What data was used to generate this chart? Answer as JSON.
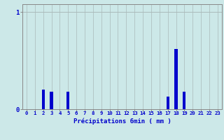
{
  "values": [
    0,
    0,
    0.2,
    0.18,
    0,
    0.18,
    0,
    0,
    0,
    0,
    0,
    0,
    0,
    0,
    0,
    0,
    0,
    0.13,
    0.62,
    0.18,
    0,
    0,
    0,
    0
  ],
  "bar_color": "#0000cc",
  "background_color": "#cce8e8",
  "grid_color": "#aababa",
  "axis_color": "#888888",
  "xlabel": "Précipitations 6min ( mm )",
  "xlabel_color": "#0000cc",
  "ylim": [
    0,
    1.08
  ],
  "xlim": [
    -0.5,
    23.5
  ],
  "tick_color": "#0000cc",
  "hours": [
    0,
    1,
    2,
    3,
    4,
    5,
    6,
    7,
    8,
    9,
    10,
    11,
    12,
    13,
    14,
    15,
    16,
    17,
    18,
    19,
    20,
    21,
    22,
    23
  ]
}
